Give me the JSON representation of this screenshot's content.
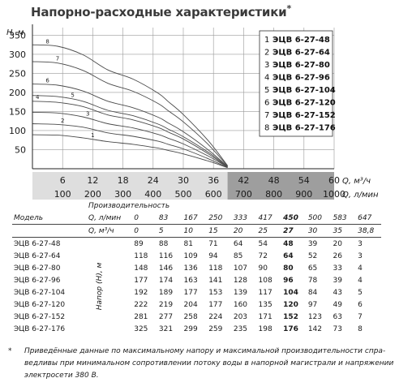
{
  "title": "Напорно-расходные характеристики",
  "title_mark": "*",
  "chart_data": {
    "type": "line",
    "ylabel": "H, м",
    "xlabel_m3h": "Q, м³/ч",
    "xlabel_lmin": "Q, л/мин",
    "y_ticks": [
      50,
      100,
      150,
      200,
      250,
      300,
      350
    ],
    "x_ticks_m3h": [
      6,
      12,
      18,
      24,
      30,
      36,
      42,
      48,
      54,
      60
    ],
    "x_ticks_lmin": [
      100,
      200,
      300,
      400,
      500,
      600,
      700,
      800,
      900,
      1000
    ],
    "xlim": [
      0,
      60
    ],
    "ylim": [
      0,
      370
    ],
    "x": [
      0,
      5,
      10,
      15,
      20,
      25,
      27,
      30,
      35,
      38.8
    ],
    "series": [
      {
        "name": "1",
        "values": [
          89,
          88,
          81,
          71,
          64,
          54,
          48,
          39,
          20,
          3
        ]
      },
      {
        "name": "2",
        "values": [
          118,
          116,
          109,
          94,
          85,
          72,
          64,
          52,
          26,
          3
        ]
      },
      {
        "name": "3",
        "values": [
          148,
          146,
          136,
          118,
          107,
          90,
          80,
          65,
          33,
          4
        ]
      },
      {
        "name": "4",
        "values": [
          177,
          174,
          163,
          141,
          128,
          108,
          96,
          78,
          39,
          4
        ]
      },
      {
        "name": "5",
        "values": [
          192,
          189,
          177,
          153,
          139,
          117,
          104,
          84,
          43,
          5
        ]
      },
      {
        "name": "6",
        "values": [
          222,
          219,
          204,
          177,
          160,
          135,
          120,
          97,
          49,
          6
        ]
      },
      {
        "name": "7",
        "values": [
          281,
          277,
          258,
          224,
          203,
          171,
          152,
          123,
          63,
          7
        ]
      },
      {
        "name": "8",
        "values": [
          325,
          321,
          299,
          259,
          235,
          198,
          176,
          142,
          73,
          8
        ]
      }
    ]
  },
  "legend": [
    {
      "num": "1",
      "label": "ЭЦВ 6-27-48"
    },
    {
      "num": "2",
      "label": "ЭЦВ 6-27-64"
    },
    {
      "num": "3",
      "label": "ЭЦВ 6-27-80"
    },
    {
      "num": "4",
      "label": "ЭЦВ 6-27-96"
    },
    {
      "num": "5",
      "label": "ЭЦВ 6-27-104"
    },
    {
      "num": "6",
      "label": "ЭЦВ 6-27-120"
    },
    {
      "num": "7",
      "label": "ЭЦВ 6-27-152"
    },
    {
      "num": "8",
      "label": "ЭЦВ 6-27-176"
    }
  ],
  "table": {
    "perf_title": "Производительность",
    "model_header": "Модель",
    "unit_lmin": "Q, л/мин",
    "unit_m3h": "Q, м³/ч",
    "head_label": "Напор (Н), м",
    "lmin": [
      "0",
      "83",
      "167",
      "250",
      "333",
      "417",
      "450",
      "500",
      "583",
      "647"
    ],
    "m3h": [
      "0",
      "5",
      "10",
      "15",
      "20",
      "25",
      "27",
      "30",
      "35",
      "38,8"
    ],
    "rows": [
      {
        "model": "ЭЦВ 6-27-48",
        "values": [
          "89",
          "88",
          "81",
          "71",
          "64",
          "54",
          "48",
          "39",
          "20",
          "3"
        ]
      },
      {
        "model": "ЭЦВ 6-27-64",
        "values": [
          "118",
          "116",
          "109",
          "94",
          "85",
          "72",
          "64",
          "52",
          "26",
          "3"
        ]
      },
      {
        "model": "ЭЦВ 6-27-80",
        "values": [
          "148",
          "146",
          "136",
          "118",
          "107",
          "90",
          "80",
          "65",
          "33",
          "4"
        ]
      },
      {
        "model": "ЭЦВ 6-27-96",
        "values": [
          "177",
          "174",
          "163",
          "141",
          "128",
          "108",
          "96",
          "78",
          "39",
          "4"
        ]
      },
      {
        "model": "ЭЦВ 6-27-104",
        "values": [
          "192",
          "189",
          "177",
          "153",
          "139",
          "117",
          "104",
          "84",
          "43",
          "5"
        ]
      },
      {
        "model": "ЭЦВ 6-27-120",
        "values": [
          "222",
          "219",
          "204",
          "177",
          "160",
          "135",
          "120",
          "97",
          "49",
          "6"
        ]
      },
      {
        "model": "ЭЦВ 6-27-152",
        "values": [
          "281",
          "277",
          "258",
          "224",
          "203",
          "171",
          "152",
          "123",
          "63",
          "7"
        ]
      },
      {
        "model": "ЭЦВ 6-27-176",
        "values": [
          "325",
          "321",
          "299",
          "259",
          "235",
          "198",
          "176",
          "142",
          "73",
          "8"
        ]
      }
    ]
  },
  "footnote": {
    "mark": "*",
    "line1": "Приведённые данные по максимальному напору и максимальной производительности спра-",
    "line2": "ведливы при минимальном сопротивлении потоку воды в напорной магистрали и напряжении",
    "line3": "электросети 380 В."
  }
}
